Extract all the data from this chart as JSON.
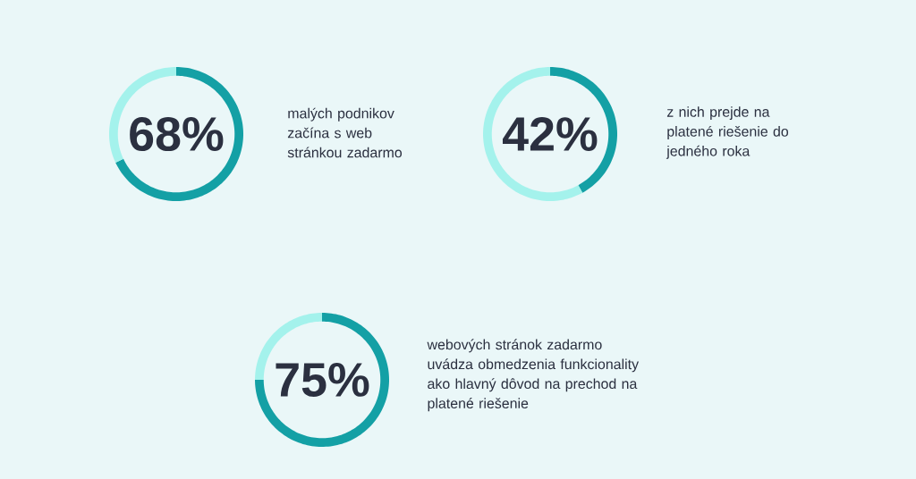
{
  "chart_data": [
    {
      "type": "donut",
      "title": "malých podnikov začína s web stránkou zadarmo",
      "categories": [
        null,
        null
      ],
      "values": [
        68,
        32
      ],
      "colors": [
        "#14a0a5",
        "#a4f2ec"
      ],
      "annotations": [
        "68%"
      ]
    },
    {
      "type": "donut",
      "title": "z nich prejde na platené riešenie do jedného roka",
      "categories": [
        null,
        null
      ],
      "values": [
        42,
        58
      ],
      "colors": [
        "#14a0a5",
        "#a4f2ec"
      ],
      "annotations": [
        "42%"
      ]
    },
    {
      "type": "donut",
      "title": "webových stránok zadarmo uvádza obmedzenia funkcionality ako hlavný dôvod na prechod na platené riešenie",
      "categories": [
        null,
        null
      ],
      "values": [
        75,
        25
      ],
      "colors": [
        "#14a0a5",
        "#a4f2ec"
      ],
      "annotations": [
        "75%"
      ]
    }
  ]
}
